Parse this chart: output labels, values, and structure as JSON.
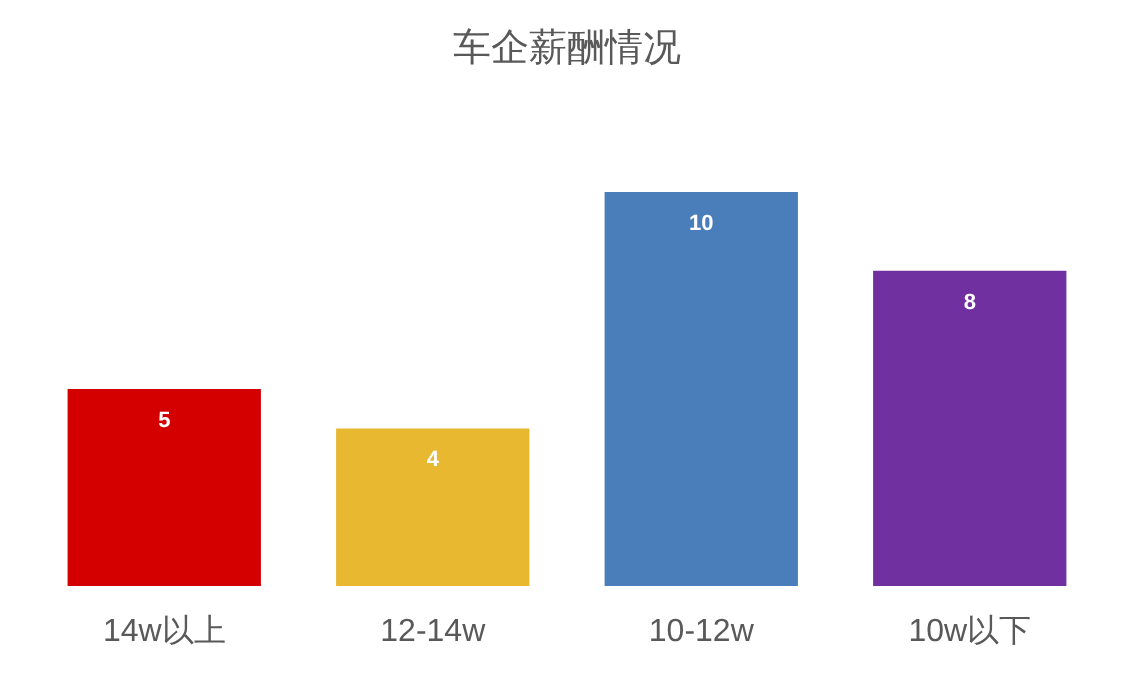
{
  "chart_data": {
    "type": "bar",
    "title": "车企薪酬情况",
    "categories": [
      "14w以上",
      "12-14w",
      "10-12w",
      "10w以下"
    ],
    "values": [
      5,
      4,
      10,
      8
    ],
    "colors": [
      "#d40000",
      "#e8b830",
      "#4a7ebb",
      "#7030a0"
    ],
    "data_labels": true
  }
}
